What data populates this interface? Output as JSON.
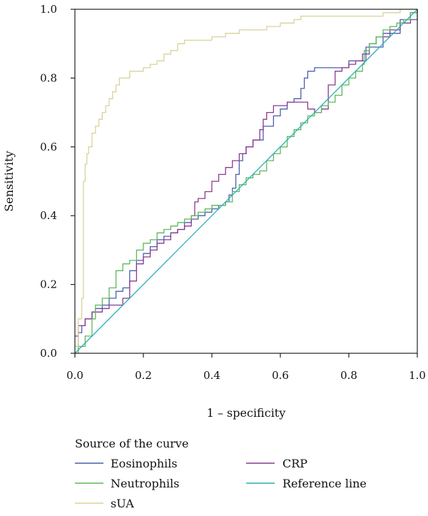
{
  "chart_data": {
    "type": "line",
    "xlabel": "1 – specificity",
    "ylabel": "Sensitivity",
    "xlim": [
      0,
      1
    ],
    "ylim": [
      0,
      1
    ],
    "x_ticks": [
      "0.0",
      "0.2",
      "0.4",
      "0.6",
      "0.8",
      "1.0"
    ],
    "y_ticks": [
      "0.0",
      "0.2",
      "0.4",
      "0.6",
      "0.8",
      "1.0"
    ],
    "grid": false,
    "legend_title": "Source of the curve",
    "legend_placement": "bottom",
    "series": [
      {
        "name": "Eosinophils",
        "color": "#4a5fae",
        "x": [
          0,
          0.01,
          0.02,
          0.03,
          0.05,
          0.06,
          0.08,
          0.1,
          0.12,
          0.14,
          0.16,
          0.18,
          0.2,
          0.22,
          0.24,
          0.26,
          0.28,
          0.3,
          0.32,
          0.34,
          0.36,
          0.38,
          0.4,
          0.42,
          0.44,
          0.45,
          0.46,
          0.47,
          0.48,
          0.49,
          0.5,
          0.52,
          0.55,
          0.58,
          0.6,
          0.62,
          0.64,
          0.66,
          0.67,
          0.68,
          0.7,
          0.72,
          0.75,
          0.8,
          0.85,
          0.9,
          0.95,
          1.0
        ],
        "y": [
          0.02,
          0.06,
          0.08,
          0.1,
          0.12,
          0.13,
          0.14,
          0.16,
          0.18,
          0.19,
          0.24,
          0.27,
          0.29,
          0.31,
          0.33,
          0.34,
          0.35,
          0.36,
          0.38,
          0.39,
          0.4,
          0.41,
          0.42,
          0.43,
          0.44,
          0.46,
          0.48,
          0.52,
          0.56,
          0.58,
          0.6,
          0.62,
          0.66,
          0.69,
          0.71,
          0.73,
          0.74,
          0.77,
          0.8,
          0.82,
          0.83,
          0.83,
          0.83,
          0.85,
          0.89,
          0.93,
          0.97,
          1.0
        ]
      },
      {
        "name": "CRP",
        "color": "#8b3a8f",
        "x": [
          0,
          0.01,
          0.03,
          0.05,
          0.08,
          0.1,
          0.14,
          0.16,
          0.18,
          0.2,
          0.22,
          0.24,
          0.26,
          0.28,
          0.3,
          0.32,
          0.34,
          0.35,
          0.36,
          0.38,
          0.4,
          0.42,
          0.44,
          0.46,
          0.48,
          0.5,
          0.52,
          0.54,
          0.55,
          0.56,
          0.58,
          0.6,
          0.62,
          0.64,
          0.66,
          0.68,
          0.7,
          0.72,
          0.74,
          0.76,
          0.78,
          0.8,
          0.82,
          0.84,
          0.86,
          0.88,
          0.9,
          0.92,
          0.95,
          0.98,
          1.0
        ],
        "y": [
          0.05,
          0.08,
          0.1,
          0.12,
          0.13,
          0.14,
          0.16,
          0.21,
          0.26,
          0.28,
          0.3,
          0.32,
          0.33,
          0.35,
          0.36,
          0.37,
          0.4,
          0.44,
          0.45,
          0.47,
          0.5,
          0.52,
          0.54,
          0.56,
          0.58,
          0.6,
          0.62,
          0.65,
          0.68,
          0.7,
          0.72,
          0.72,
          0.73,
          0.73,
          0.73,
          0.71,
          0.7,
          0.71,
          0.78,
          0.82,
          0.83,
          0.84,
          0.85,
          0.87,
          0.9,
          0.92,
          0.92,
          0.94,
          0.96,
          0.99,
          1.0
        ]
      },
      {
        "name": "Neutrophils",
        "color": "#5cb85c",
        "x": [
          0,
          0.01,
          0.03,
          0.05,
          0.06,
          0.08,
          0.1,
          0.12,
          0.14,
          0.16,
          0.18,
          0.2,
          0.22,
          0.24,
          0.26,
          0.28,
          0.3,
          0.32,
          0.34,
          0.36,
          0.38,
          0.4,
          0.42,
          0.44,
          0.46,
          0.48,
          0.5,
          0.52,
          0.54,
          0.56,
          0.58,
          0.6,
          0.62,
          0.64,
          0.66,
          0.68,
          0.7,
          0.72,
          0.74,
          0.76,
          0.78,
          0.8,
          0.82,
          0.84,
          0.845,
          0.86,
          0.88,
          0.9,
          0.92,
          0.94,
          0.96,
          0.98,
          1.0
        ],
        "y": [
          0,
          0.02,
          0.05,
          0.1,
          0.14,
          0.16,
          0.19,
          0.24,
          0.26,
          0.27,
          0.3,
          0.32,
          0.33,
          0.35,
          0.36,
          0.37,
          0.38,
          0.39,
          0.4,
          0.41,
          0.42,
          0.43,
          0.43,
          0.44,
          0.47,
          0.49,
          0.51,
          0.52,
          0.53,
          0.56,
          0.58,
          0.6,
          0.63,
          0.65,
          0.67,
          0.69,
          0.7,
          0.72,
          0.73,
          0.75,
          0.78,
          0.8,
          0.82,
          0.84,
          0.88,
          0.9,
          0.92,
          0.94,
          0.95,
          0.96,
          0.97,
          0.99,
          1.0
        ]
      },
      {
        "name": "Reference line",
        "color": "#2ab0b5",
        "x": [
          0,
          1
        ],
        "y": [
          0,
          1
        ]
      },
      {
        "name": "sUA",
        "color": "#d8d39a",
        "x": [
          0,
          0.01,
          0.02,
          0.025,
          0.03,
          0.035,
          0.04,
          0.05,
          0.06,
          0.07,
          0.08,
          0.09,
          0.1,
          0.11,
          0.12,
          0.13,
          0.14,
          0.16,
          0.18,
          0.2,
          0.22,
          0.24,
          0.26,
          0.28,
          0.3,
          0.32,
          0.34,
          0.36,
          0.4,
          0.44,
          0.48,
          0.52,
          0.56,
          0.6,
          0.62,
          0.64,
          0.66,
          0.7,
          0.8,
          0.9,
          0.95,
          1.0
        ],
        "y": [
          0.02,
          0.1,
          0.16,
          0.5,
          0.55,
          0.58,
          0.6,
          0.64,
          0.66,
          0.68,
          0.7,
          0.72,
          0.74,
          0.76,
          0.78,
          0.8,
          0.8,
          0.82,
          0.82,
          0.83,
          0.84,
          0.85,
          0.87,
          0.88,
          0.9,
          0.91,
          0.91,
          0.91,
          0.92,
          0.93,
          0.94,
          0.94,
          0.95,
          0.96,
          0.96,
          0.97,
          0.98,
          0.98,
          0.98,
          0.99,
          1.0,
          1.0
        ]
      }
    ]
  },
  "legend": {
    "title": "Source of the curve",
    "items": [
      {
        "name": "Eosinophils",
        "color": "#4a5fae"
      },
      {
        "name": "Neutrophils",
        "color": "#5cb85c"
      },
      {
        "name": "sUA",
        "color": "#d8d39a"
      },
      {
        "name": "CRP",
        "color": "#8b3a8f"
      },
      {
        "name": "Reference line",
        "color": "#2ab0b5"
      }
    ]
  }
}
